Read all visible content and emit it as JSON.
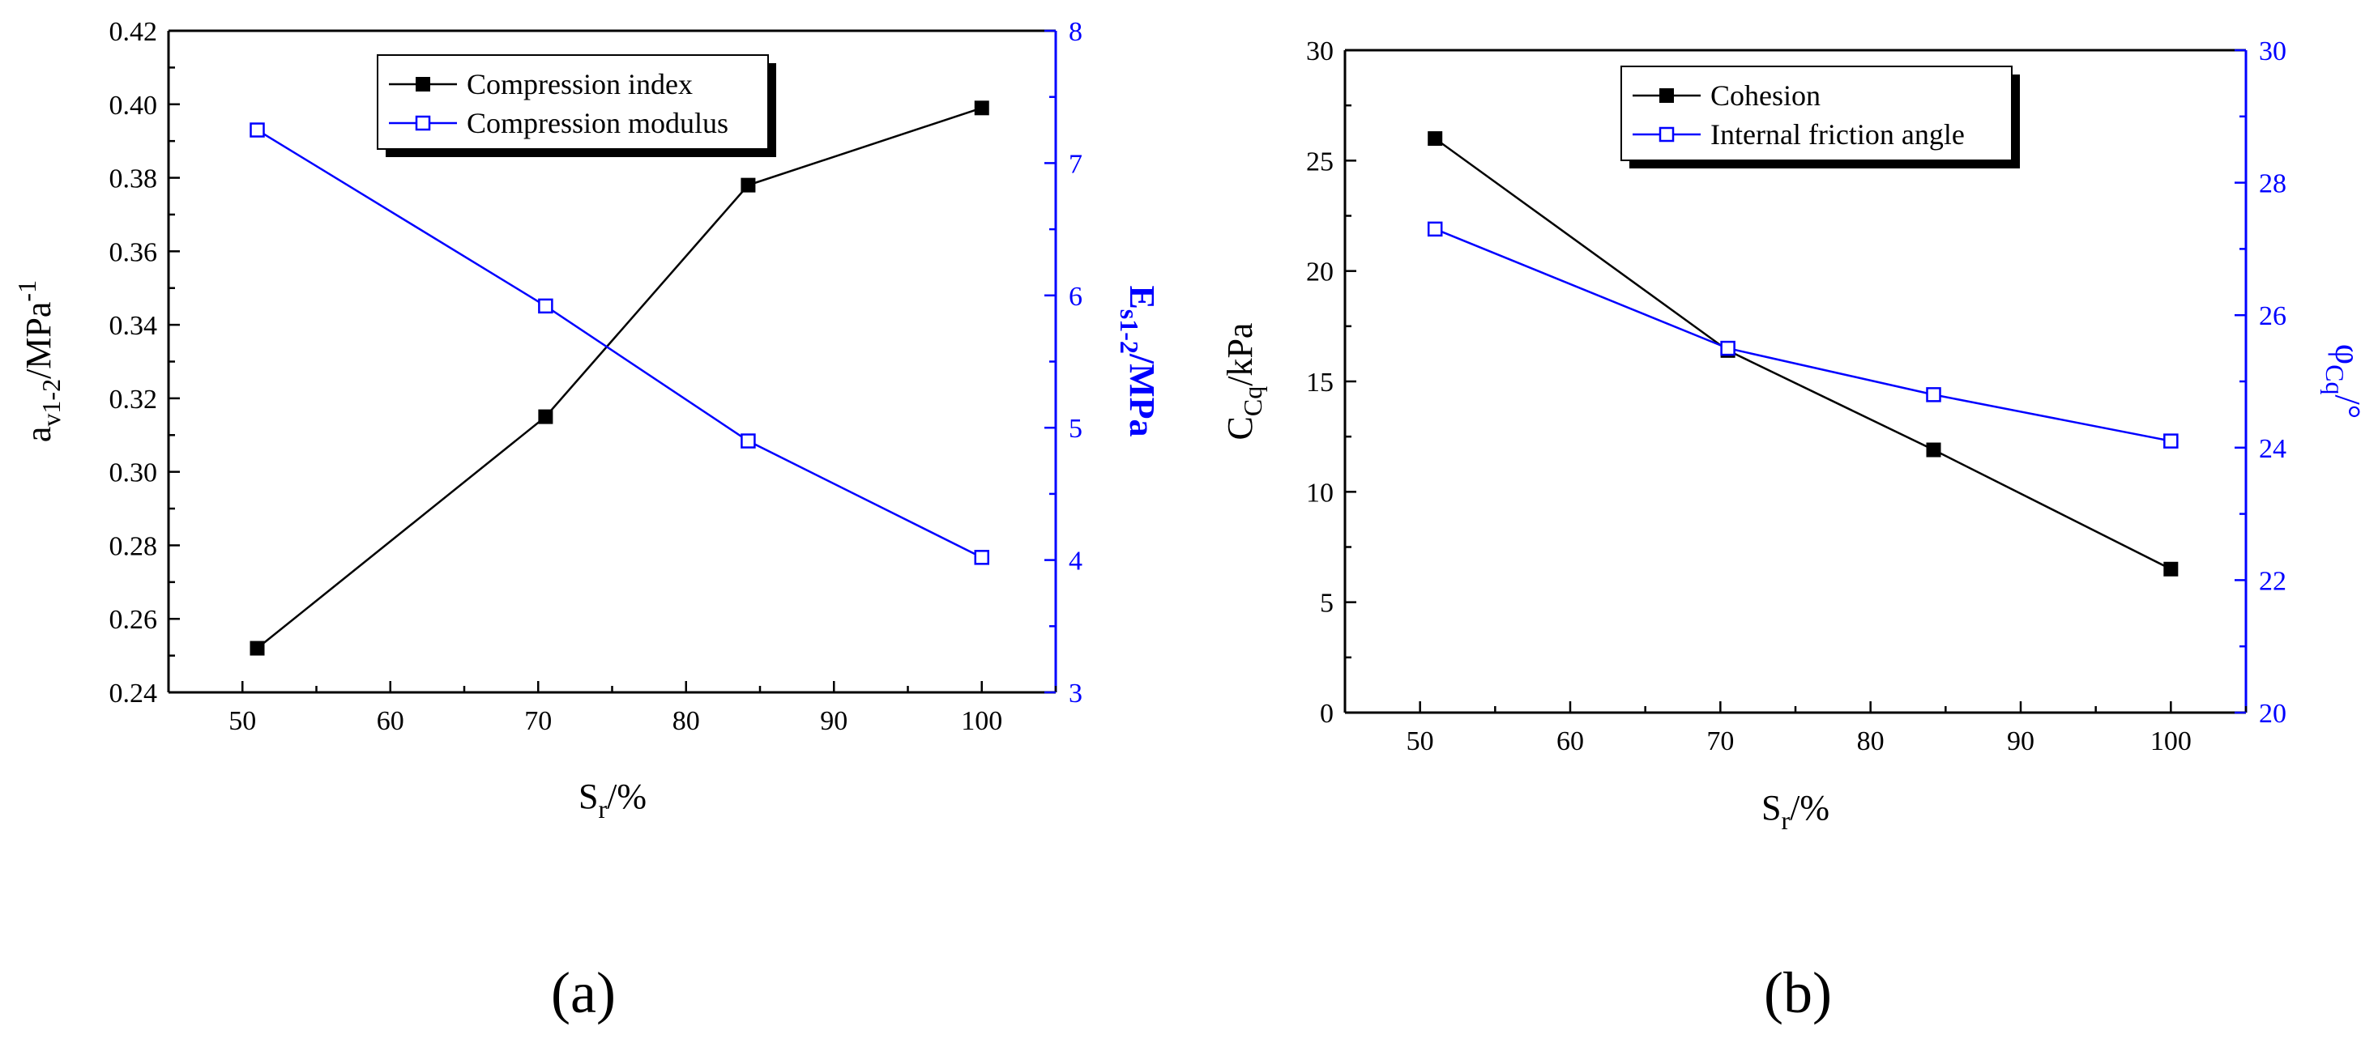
{
  "panel_labels": [
    "(a)",
    "(b)"
  ],
  "chart_data": [
    {
      "type": "line",
      "panel_label": "(a)",
      "title": "",
      "xlabel": "S",
      "xlabel_sub": "r",
      "xlabel_suffix": "/%",
      "ylabel_left": "a",
      "ylabel_left_sub": "v1-2",
      "ylabel_left_suffix": "/MPa",
      "ylabel_left_sup": "-1",
      "ylabel_right": "E",
      "ylabel_right_sub": "s1-2",
      "ylabel_right_suffix": "/MPa",
      "xlim": [
        45,
        105
      ],
      "xticks": [
        50,
        60,
        70,
        80,
        90,
        100
      ],
      "ylim_left": [
        0.24,
        0.42
      ],
      "yticks_left": [
        "0.24",
        "0.26",
        "0.28",
        "0.30",
        "0.32",
        "0.34",
        "0.36",
        "0.38",
        "0.40",
        "0.42"
      ],
      "ylim_right": [
        3,
        8
      ],
      "yticks_right": [
        "3",
        "4",
        "5",
        "6",
        "7",
        "8"
      ],
      "legend_position": "top-center",
      "series": [
        {
          "name": "Compression index",
          "axis": "left",
          "color": "#000000",
          "marker": "filled-square",
          "x": [
            51,
            70.5,
            84.2,
            100
          ],
          "y": [
            0.252,
            0.315,
            0.378,
            0.399
          ]
        },
        {
          "name": "Compression modulus",
          "axis": "right",
          "color": "#0000ff",
          "marker": "open-square",
          "x": [
            51,
            70.5,
            84.2,
            100
          ],
          "y": [
            7.25,
            5.92,
            4.9,
            4.02
          ]
        }
      ]
    },
    {
      "type": "line",
      "panel_label": "(b)",
      "title": "",
      "xlabel": "S",
      "xlabel_sub": "r",
      "xlabel_suffix": "/%",
      "ylabel_left": "C",
      "ylabel_left_sub": "Cq",
      "ylabel_left_suffix": "/kPa",
      "ylabel_right": "φ",
      "ylabel_right_sub": "Cq",
      "ylabel_right_suffix": "/°",
      "xlim": [
        45,
        105
      ],
      "xticks": [
        50,
        60,
        70,
        80,
        90,
        100
      ],
      "ylim_left": [
        0,
        30
      ],
      "yticks_left": [
        "0",
        "5",
        "10",
        "15",
        "20",
        "25",
        "30"
      ],
      "ylim_right": [
        20,
        30
      ],
      "yticks_right": [
        "20",
        "22",
        "24",
        "26",
        "28",
        "30"
      ],
      "legend_position": "top-center",
      "series": [
        {
          "name": "Cohesion",
          "axis": "left",
          "color": "#000000",
          "marker": "filled-square",
          "x": [
            51,
            70.5,
            84.2,
            100
          ],
          "y": [
            26.0,
            16.4,
            11.9,
            6.5
          ]
        },
        {
          "name": "Internal friction angle",
          "axis": "right",
          "color": "#0000ff",
          "marker": "open-square",
          "x": [
            51,
            70.5,
            84.2,
            100
          ],
          "y": [
            27.3,
            25.5,
            24.8,
            24.1
          ]
        }
      ]
    }
  ]
}
